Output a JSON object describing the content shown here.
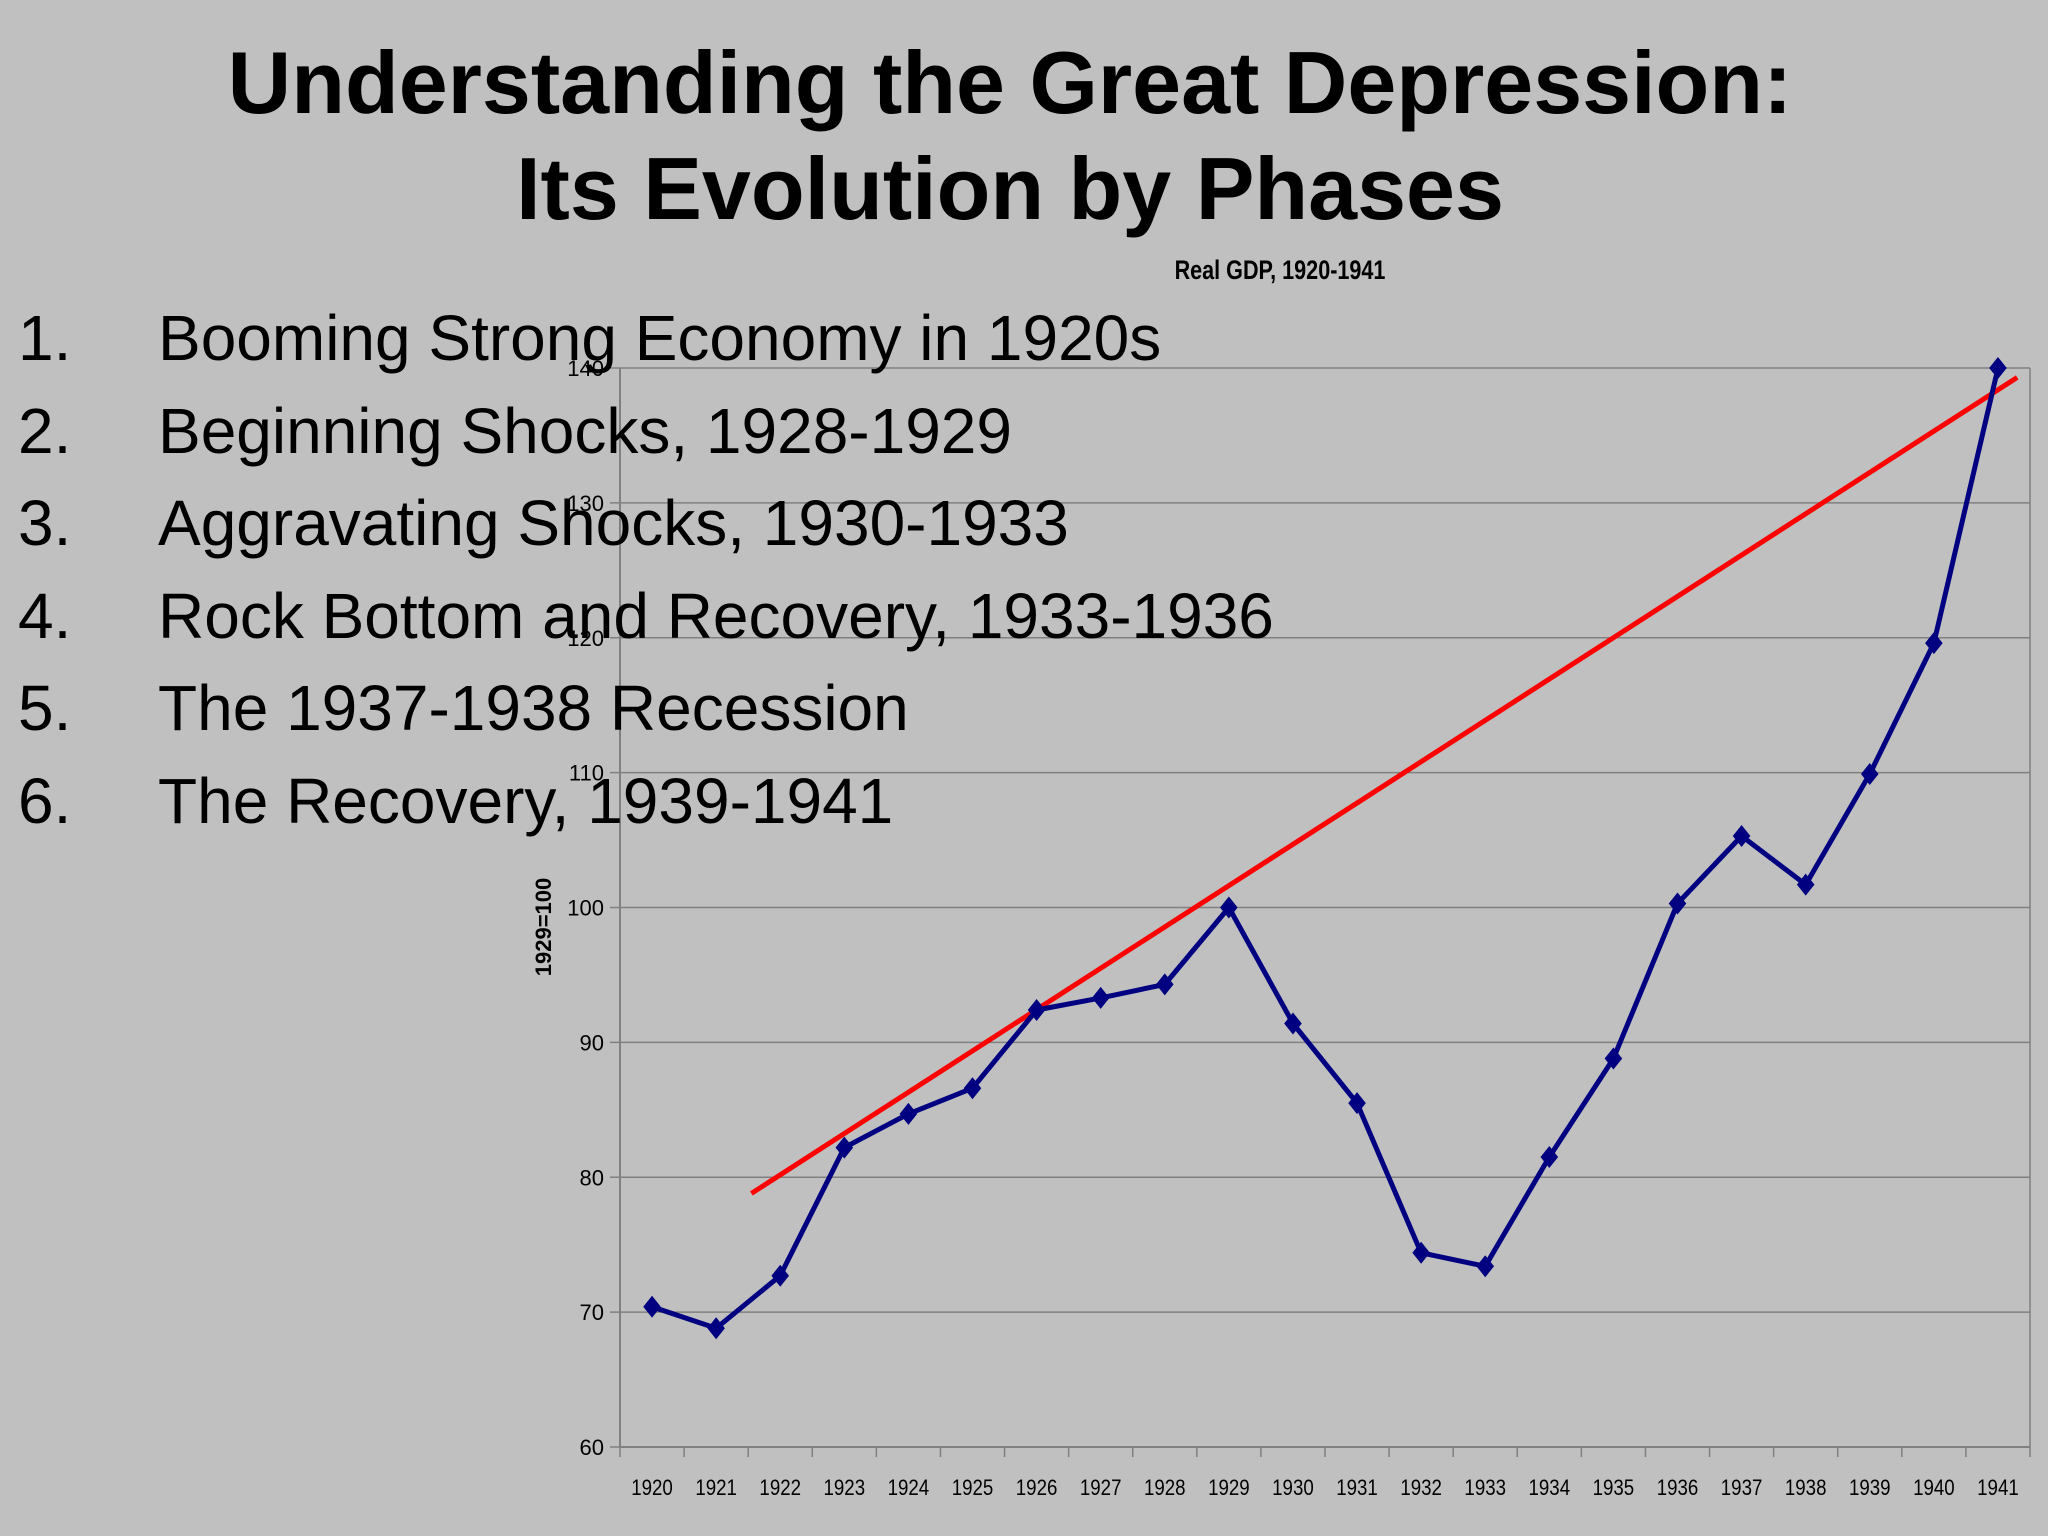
{
  "slide": {
    "title_line1": "Understanding the Great Depression:",
    "title_line2": "Its Evolution by Phases",
    "items": [
      {
        "number": "1.",
        "text": "Booming Strong Economy in 1920s"
      },
      {
        "number": "2.",
        "text": "Beginning Shocks, 1928-1929"
      },
      {
        "number": "3.",
        "text": "Aggravating Shocks, 1930-1933"
      },
      {
        "number": "4.",
        "text": "Rock Bottom and Recovery, 1933-1936"
      },
      {
        "number": "5.",
        "text": "The 1937-1938 Recession"
      },
      {
        "number": "6.",
        "text": "The Recovery, 1939-1941"
      }
    ]
  },
  "chart_data": {
    "type": "line",
    "title": "Real GDP, 1920-1941",
    "xlabel": "",
    "ylabel": "1929=100",
    "categories": [
      "1920",
      "1921",
      "1922",
      "1923",
      "1924",
      "1925",
      "1926",
      "1927",
      "1928",
      "1929",
      "1930",
      "1931",
      "1932",
      "1933",
      "1934",
      "1935",
      "1936",
      "1937",
      "1938",
      "1939",
      "1940",
      "1941"
    ],
    "series": [
      {
        "values": [
          70.4,
          68.8,
          72.7,
          82.2,
          84.7,
          86.6,
          92.4,
          93.3,
          94.3,
          100.0,
          91.4,
          85.5,
          74.4,
          73.4,
          81.5,
          88.8,
          100.3,
          105.3,
          101.7,
          109.9,
          119.6,
          140.0
        ],
        "color": "#000080",
        "marker": "diamond"
      }
    ],
    "trendline": {
      "x_start": 1921.55,
      "y_start": 78.8,
      "x_end": 1941.3,
      "y_end": 139.3,
      "color": "#ff0000"
    },
    "ylim": [
      60,
      140
    ],
    "yticks": [
      60,
      70,
      80,
      90,
      100,
      110,
      120,
      130,
      140
    ],
    "grid": true,
    "legend": "none"
  },
  "colors": {
    "background": "#c0c0c0",
    "series": "#000080",
    "trend": "#ff0000",
    "grid": "#808080"
  }
}
